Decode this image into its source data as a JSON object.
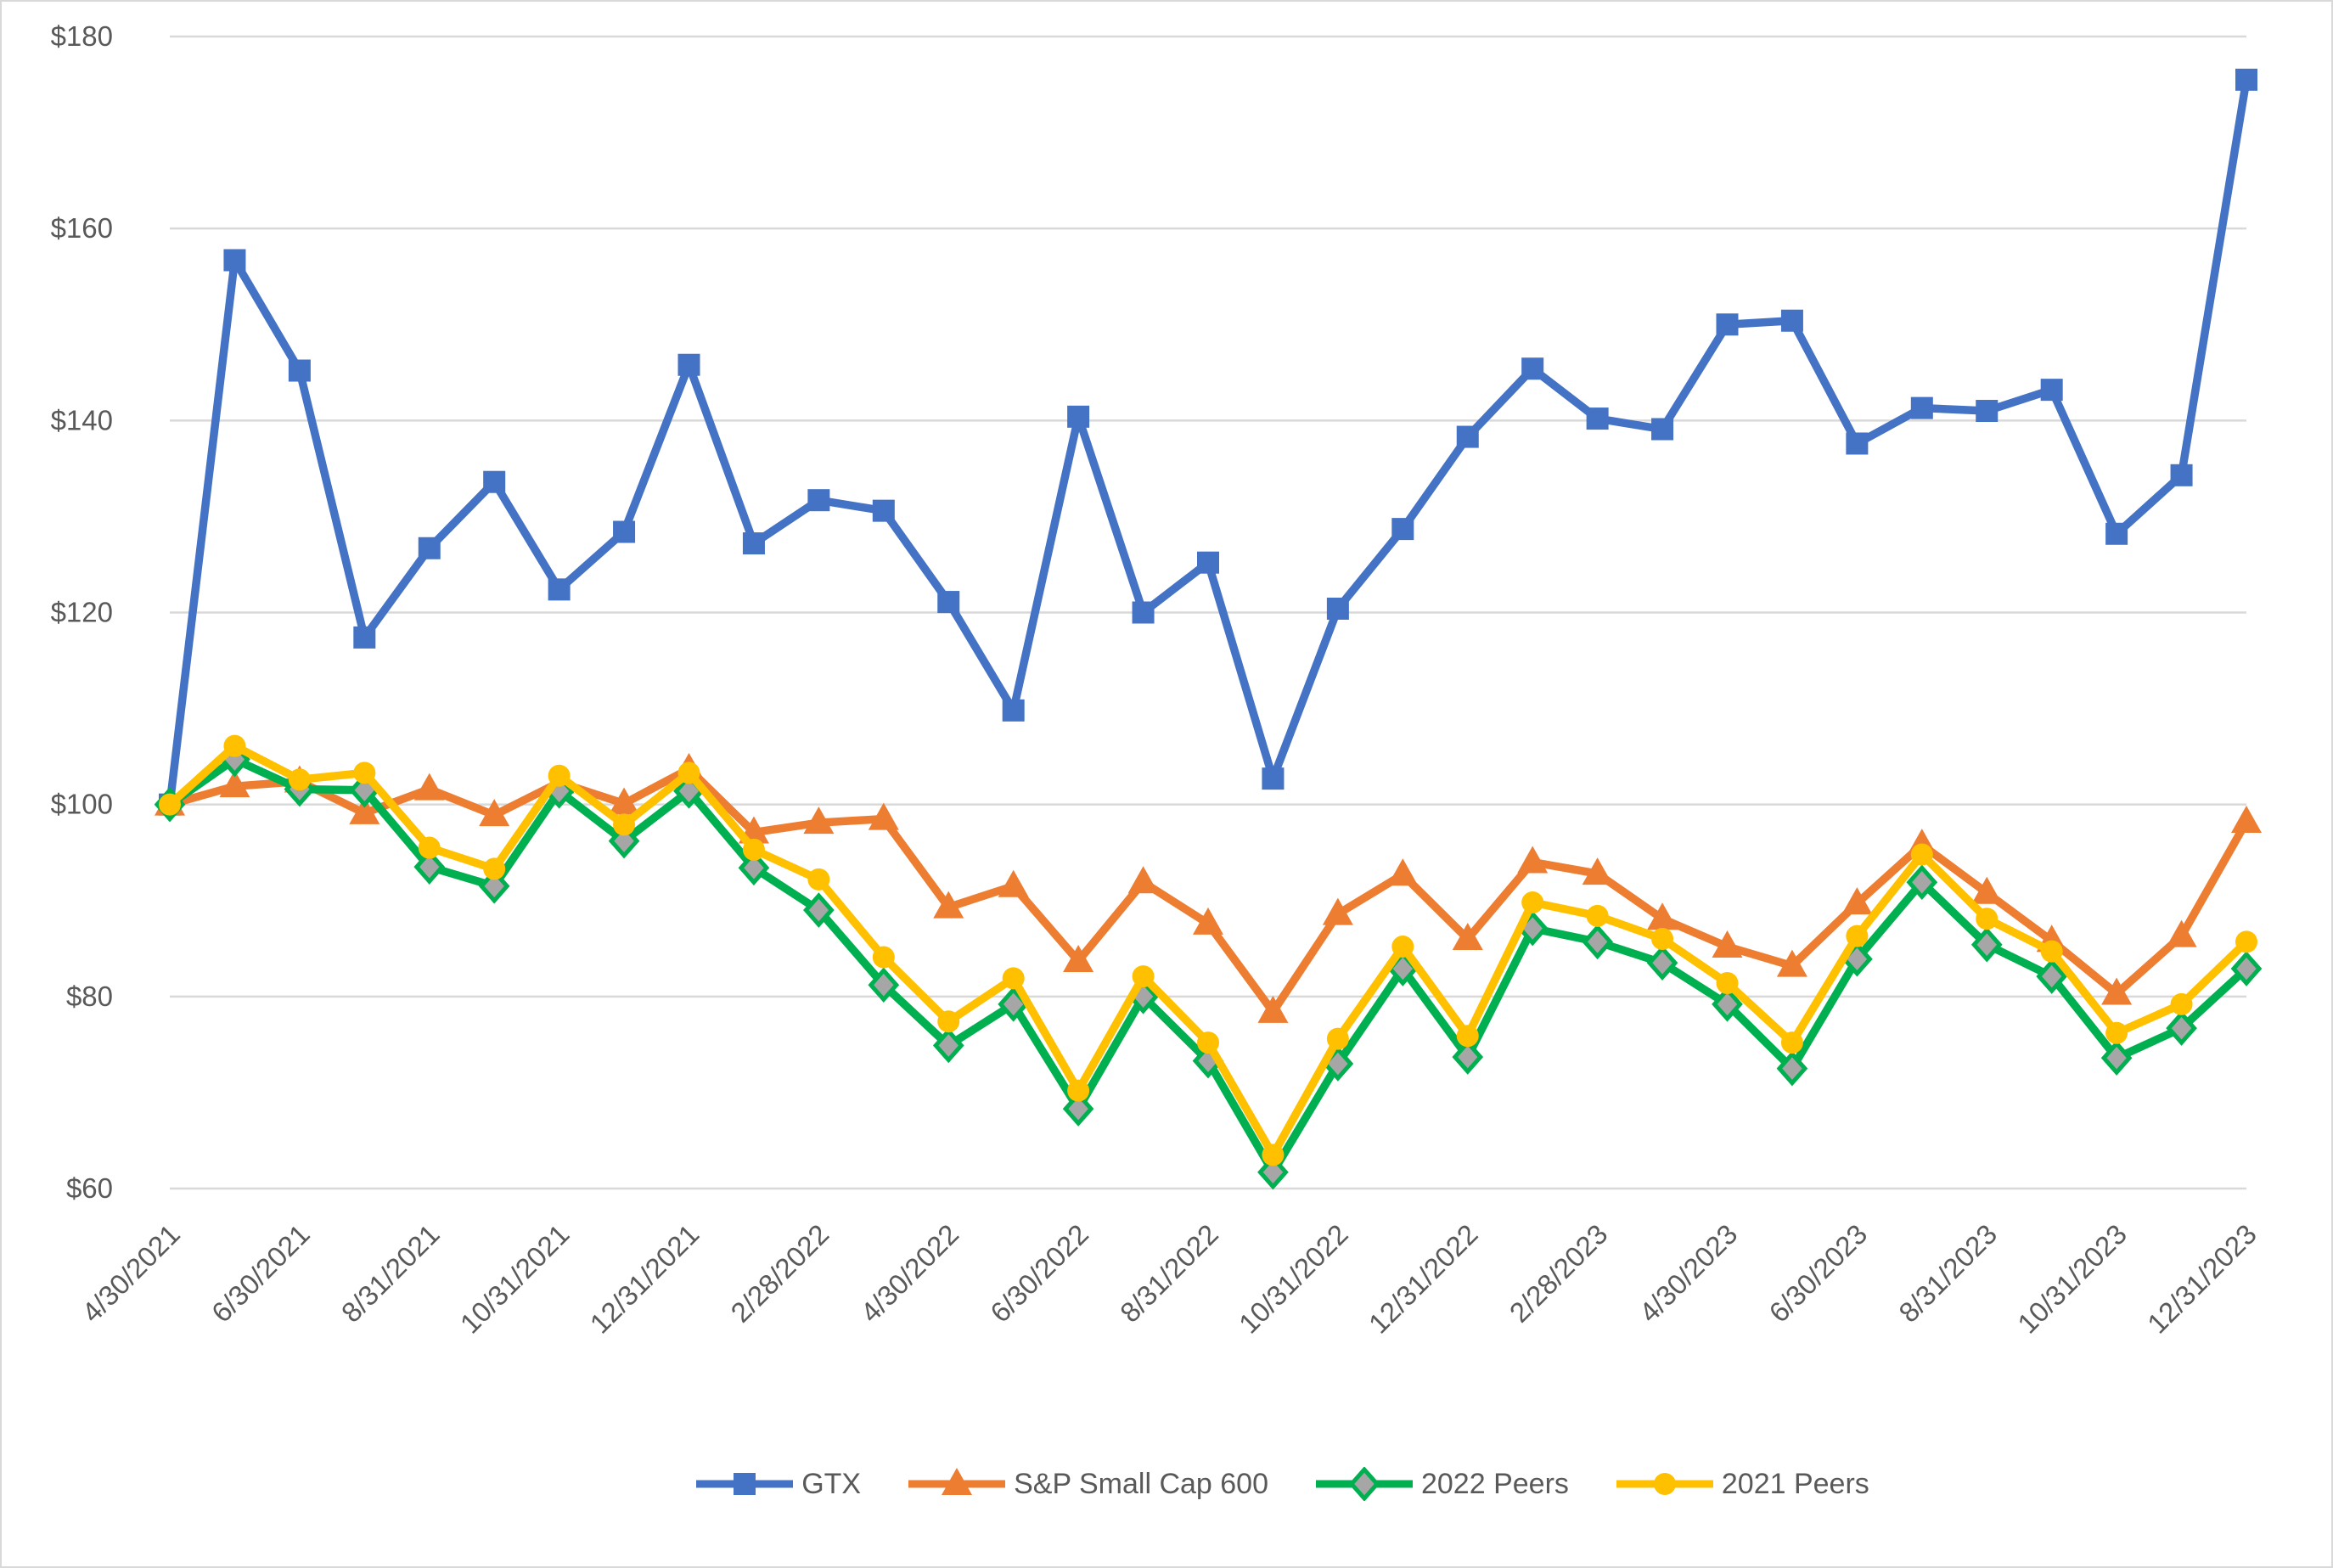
{
  "chart_data": {
    "type": "line",
    "title": "",
    "xlabel": "",
    "ylabel": "",
    "ylim": [
      60,
      180
    ],
    "grid": true,
    "legend_position": "bottom",
    "y_ticks": [
      {
        "label": "$180",
        "value": 180
      },
      {
        "label": "$160",
        "value": 160
      },
      {
        "label": "$140",
        "value": 140
      },
      {
        "label": "$120",
        "value": 120
      },
      {
        "label": "$100",
        "value": 100
      },
      {
        "label": "$80",
        "value": 80
      },
      {
        "label": "$60",
        "value": 60
      }
    ],
    "x_tick_step": 2,
    "x_tick_rotation": -45,
    "categories": [
      "4/30/2021",
      "5/31/2021",
      "6/30/2021",
      "7/31/2021",
      "8/31/2021",
      "9/30/2021",
      "10/31/2021",
      "11/30/2021",
      "12/31/2021",
      "1/31/2022",
      "2/28/2022",
      "3/31/2022",
      "4/30/2022",
      "5/31/2022",
      "6/30/2022",
      "7/31/2022",
      "8/31/2022",
      "9/30/2022",
      "10/31/2022",
      "11/30/2022",
      "12/31/2022",
      "1/31/2023",
      "2/28/2023",
      "3/31/2023",
      "4/30/2023",
      "5/31/2023",
      "6/30/2023",
      "7/31/2023",
      "8/31/2023",
      "9/30/2023",
      "10/31/2023",
      "11/30/2023",
      "12/31/2023"
    ],
    "series": [
      {
        "name": "GTX",
        "color": "#4472C4",
        "marker": "square",
        "values": [
          100,
          156.7,
          145.2,
          117.4,
          126.7,
          133.6,
          122.4,
          128.4,
          145.8,
          127.2,
          131.7,
          130.6,
          121.1,
          109.8,
          140.4,
          120.0,
          125.2,
          102.7,
          120.4,
          128.7,
          138.3,
          145.4,
          140.2,
          139.1,
          150.0,
          150.4,
          137.6,
          141.3,
          141.0,
          143.2,
          128.2,
          134.3,
          175.5
        ]
      },
      {
        "name": "S&P Small Cap 600",
        "color": "#ED7D31",
        "marker": "triangle",
        "values": [
          100,
          101.9,
          102.4,
          99.1,
          101.6,
          98.9,
          102.3,
          100.1,
          103.7,
          97.1,
          98.1,
          98.5,
          89.3,
          91.5,
          83.7,
          91.9,
          87.6,
          78.4,
          88.6,
          92.7,
          86.0,
          94.0,
          92.8,
          88.1,
          85.2,
          83.2,
          89.7,
          95.8,
          90.8,
          85.8,
          80.3,
          86.3,
          98.2
        ]
      },
      {
        "name": "2022 Peers",
        "color": "#00B050",
        "marker": "diamond",
        "marker_fill": "#A6A6A6",
        "values": [
          100,
          104.7,
          101.6,
          101.5,
          93.5,
          91.5,
          101.4,
          96.2,
          101.4,
          93.4,
          89.0,
          81.2,
          74.9,
          79.2,
          68.3,
          80.0,
          73.3,
          61.7,
          73.0,
          82.9,
          73.7,
          87.1,
          85.7,
          83.5,
          79.2,
          72.5,
          83.9,
          91.9,
          85.4,
          82.1,
          73.6,
          76.7,
          82.9
        ]
      },
      {
        "name": "2021 Peers",
        "color": "#FFC000",
        "marker": "circle",
        "values": [
          100,
          106.1,
          102.6,
          103.3,
          95.5,
          93.3,
          103.0,
          97.9,
          103.3,
          95.3,
          92.2,
          84.1,
          77.4,
          81.9,
          70.2,
          82.1,
          75.2,
          63.5,
          75.6,
          85.2,
          75.9,
          89.8,
          88.4,
          86.0,
          81.4,
          75.2,
          86.3,
          94.8,
          88.1,
          84.7,
          76.2,
          79.2,
          85.7
        ]
      }
    ]
  },
  "styles": {
    "gridline_color": "#D9D9D9",
    "frame_color": "#D9D9D9",
    "tick_text_color": "#595959",
    "background": "#FFFFFF"
  }
}
